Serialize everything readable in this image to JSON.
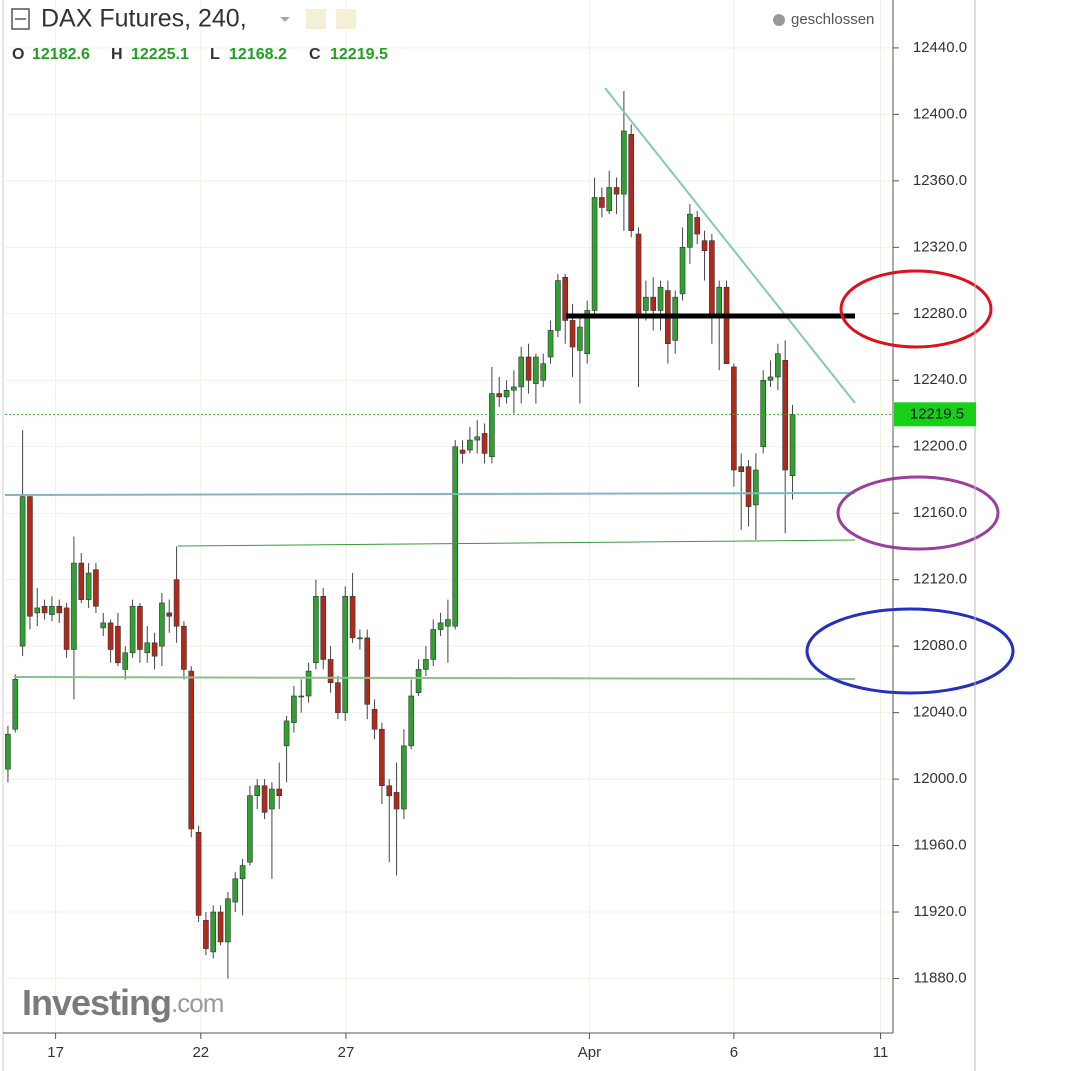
{
  "chart_data": {
    "type": "candlestick",
    "title": "DAX Futures, 240,",
    "status": "geschlossen",
    "ohlc_labels": [
      "O",
      "H",
      "L",
      "C"
    ],
    "watermark": {
      "brand": "Investing",
      "suffix": ".com"
    },
    "up_color": "#2fa12f",
    "down_color": "#b2291b",
    "grid": true,
    "x": [
      0,
      1,
      2,
      3,
      4,
      5,
      6,
      7,
      8,
      9,
      10,
      11,
      12,
      13,
      14,
      15,
      16,
      17,
      18,
      19,
      20,
      21,
      22,
      23,
      24,
      25,
      26,
      27,
      28,
      29,
      30,
      31,
      32,
      33,
      34,
      35,
      36,
      37,
      38,
      39,
      40,
      41,
      42,
      43,
      44,
      45,
      46,
      47,
      48,
      49,
      50,
      51,
      52,
      53,
      54,
      55,
      56,
      57,
      58,
      59,
      60,
      61,
      62,
      63,
      64,
      65,
      66,
      67,
      68,
      69,
      70,
      71,
      72,
      73,
      74,
      75,
      76,
      77,
      78,
      79,
      80,
      81,
      82,
      83,
      84,
      85,
      86,
      87,
      88,
      89,
      90,
      91,
      92,
      93,
      94,
      95,
      96,
      97,
      98,
      99,
      100,
      101,
      102,
      103,
      104,
      105,
      106,
      107
    ],
    "open": [
      12006,
      12030,
      12080,
      12170,
      12100,
      12104,
      12099,
      12104,
      12103,
      12078,
      12130,
      12108,
      12126,
      12091,
      12094,
      12092,
      12066,
      12076,
      12104,
      12076,
      12082,
      12080,
      12100,
      12120,
      12092,
      12065,
      11968,
      11915,
      11896,
      11920,
      11902,
      11926,
      11940,
      11950,
      11990,
      11996,
      11982,
      11994,
      12020,
      12034,
      12050,
      12050,
      12070,
      12110,
      12072,
      12058,
      12040,
      12110,
      12085,
      12085,
      12042,
      12030,
      11996,
      11992,
      11982,
      12020,
      12052,
      12066,
      12072,
      12090,
      12092,
      12092,
      12198,
      12198,
      12204,
      12208,
      12194,
      12232,
      12230,
      12234,
      12236,
      12254,
      12238,
      12240,
      12254,
      12270,
      12302,
      12276,
      12258,
      12256,
      12282,
      12350,
      12342,
      12356,
      12352,
      12388,
      12328,
      12282,
      12290,
      12282,
      12294,
      12264,
      12292,
      12320,
      12338,
      12324,
      12324,
      12280,
      12296,
      12248,
      12188,
      12188,
      12165,
      12200,
      12240,
      12242,
      12252,
      12182.6
    ],
    "high": [
      12032,
      12063,
      12210,
      12171,
      12115,
      12108,
      12110,
      12108,
      12106,
      12146,
      12136,
      12130,
      12130,
      12100,
      12096,
      12100,
      12080,
      12108,
      12106,
      12092,
      12088,
      12112,
      12108,
      12140,
      12095,
      12068,
      11972,
      11920,
      11924,
      11924,
      11932,
      11944,
      11952,
      11996,
      12000,
      12000,
      11998,
      12010,
      12038,
      12056,
      12060,
      12070,
      12120,
      12115,
      12080,
      12062,
      12116,
      12124,
      12090,
      12090,
      12048,
      12034,
      12000,
      12010,
      12030,
      12060,
      12072,
      12080,
      12096,
      12100,
      12108,
      12204,
      12204,
      12212,
      12216,
      12214,
      12248,
      12242,
      12240,
      12246,
      12260,
      12262,
      12256,
      12256,
      12276,
      12304,
      12304,
      12286,
      12280,
      12288,
      12362,
      12356,
      12366,
      12362,
      12414,
      12394,
      12332,
      12300,
      12302,
      12300,
      12300,
      12294,
      12332,
      12346,
      12342,
      12330,
      12328,
      12300,
      12300,
      12250,
      12196,
      12192,
      12196,
      12246,
      12252,
      12262,
      12264,
      12225.1
    ],
    "low": [
      11998,
      12028,
      12074,
      12090,
      12092,
      12096,
      12095,
      12094,
      12073,
      12048,
      12106,
      12103,
      12100,
      12086,
      12070,
      12068,
      12060,
      12073,
      12070,
      12070,
      12066,
      12068,
      12088,
      12082,
      12060,
      11965,
      11914,
      11894,
      11892,
      11900,
      11880,
      11920,
      11918,
      11948,
      11982,
      11976,
      11940,
      11982,
      11998,
      12028,
      12040,
      12046,
      12066,
      12066,
      12052,
      12036,
      12035,
      12082,
      12078,
      12036,
      12024,
      11985,
      11950,
      11942,
      11976,
      12018,
      12050,
      12062,
      12068,
      12086,
      12070,
      12090,
      12190,
      12196,
      12196,
      12190,
      12190,
      12224,
      12226,
      12220,
      12226,
      12232,
      12226,
      12236,
      12250,
      12266,
      12262,
      12242,
      12226,
      12250,
      12278,
      12338,
      12340,
      12340,
      12330,
      12326,
      12236,
      12276,
      12270,
      12270,
      12250,
      12256,
      12288,
      12310,
      12322,
      12300,
      12262,
      12246,
      12250,
      12176,
      12150,
      12152,
      12144,
      12196,
      12236,
      12234,
      12148,
      12168.2
    ],
    "close": [
      12027,
      12060,
      12170,
      12098,
      12103,
      12100,
      12104,
      12100,
      12078,
      12130,
      12108,
      12124,
      12104,
      12094,
      12078,
      12070,
      12076,
      12104,
      12078,
      12082,
      12074,
      12106,
      12098,
      12092,
      12066,
      11970,
      11918,
      11898,
      11920,
      11902,
      11928,
      11940,
      11948,
      11990,
      11996,
      11980,
      11994,
      11990,
      12035,
      12050,
      12050,
      12065,
      12110,
      12072,
      12058,
      12040,
      12110,
      12085,
      12085,
      12045,
      12030,
      11996,
      11990,
      11982,
      12020,
      12050,
      12066,
      12072,
      12090,
      12094,
      12096,
      12200,
      12196,
      12204,
      12206,
      12196,
      12232,
      12230,
      12234,
      12236,
      12254,
      12240,
      12254,
      12250,
      12270,
      12300,
      12276,
      12260,
      12272,
      12282,
      12350,
      12344,
      12356,
      12352,
      12390,
      12330,
      12280,
      12290,
      12282,
      12296,
      12262,
      12290,
      12320,
      12340,
      12328,
      12318,
      12280,
      12296,
      12250,
      12186,
      12185,
      12164,
      12186,
      12240,
      12242,
      12256,
      12186,
      12219.5
    ],
    "xlim": [
      -0.4,
      120.7
    ],
    "xticks": [
      {
        "value": 6.5,
        "label": "17"
      },
      {
        "value": 26.3,
        "label": "22"
      },
      {
        "value": 46.1,
        "label": "27"
      },
      {
        "value": 79.3,
        "label": "Apr"
      },
      {
        "value": 99.0,
        "label": "6"
      },
      {
        "value": 119.0,
        "label": "11"
      }
    ],
    "ylim": [
      11847.2,
      12457.4
    ],
    "yticks": [
      {
        "value": 11880,
        "label": "11880.0"
      },
      {
        "value": 11920,
        "label": "11920.0"
      },
      {
        "value": 11960,
        "label": "11960.0"
      },
      {
        "value": 12000,
        "label": "12000.0"
      },
      {
        "value": 12040,
        "label": "12040.0"
      },
      {
        "value": 12080,
        "label": "12080.0"
      },
      {
        "value": 12120,
        "label": "12120.0"
      },
      {
        "value": 12160,
        "label": "12160.0"
      },
      {
        "value": 12200,
        "label": "12200.0"
      },
      {
        "value": 12240,
        "label": "12240.0"
      },
      {
        "value": 12280,
        "label": "12280.0"
      },
      {
        "value": 12320,
        "label": "12320.0"
      },
      {
        "value": 12360,
        "label": "12360.0"
      },
      {
        "value": 12400,
        "label": "12400.0"
      },
      {
        "value": 12440,
        "label": "12440.0"
      }
    ]
  }
}
